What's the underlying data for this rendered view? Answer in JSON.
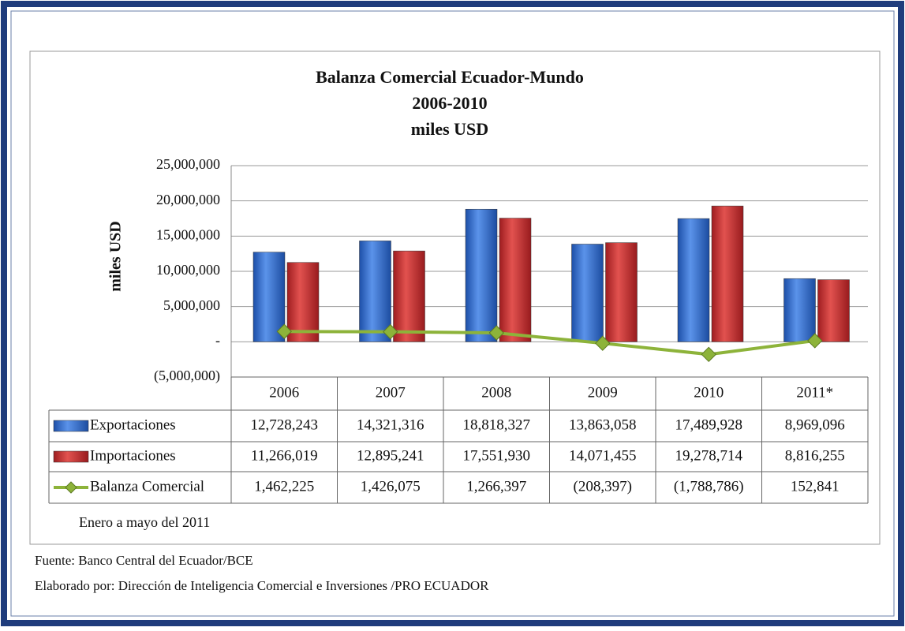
{
  "chart_data": {
    "type": "bar",
    "title": [
      "Balanza Comercial Ecuador-Mundo",
      "2006-2010",
      "miles USD"
    ],
    "ylabel": "miles USD",
    "categories": [
      "2006",
      "2007",
      "2008",
      "2009",
      "2010",
      "2011*"
    ],
    "series": [
      {
        "name": "Exportaciones",
        "color": "#2f6fd8",
        "type": "bar",
        "values": [
          12728243,
          14321316,
          18818327,
          13863058,
          17489928,
          8969096
        ],
        "value_labels": [
          "12,728,243",
          "14,321,316",
          "18,818,327",
          "13,863,058",
          "17,489,928",
          "8,969,096"
        ]
      },
      {
        "name": "Importaciones",
        "color": "#c9282b",
        "type": "bar",
        "values": [
          11266019,
          12895241,
          17551930,
          14071455,
          19278714,
          8816255
        ],
        "value_labels": [
          "11,266,019",
          "12,895,241",
          "17,551,930",
          "14,071,455",
          "19,278,714",
          "8,816,255"
        ]
      },
      {
        "name": "Balanza Comercial",
        "color": "#8db33a",
        "type": "line",
        "values": [
          1462225,
          1426075,
          1266397,
          -208397,
          -1788786,
          152841
        ],
        "value_labels": [
          "1,462,225",
          "1,426,075",
          "1,266,397",
          "(208,397)",
          "(1,788,786)",
          "152,841"
        ]
      }
    ],
    "ylim": [
      -5000000,
      25000000
    ],
    "yticks": [
      {
        "value": 25000000,
        "label": "25,000,000"
      },
      {
        "value": 20000000,
        "label": "20,000,000"
      },
      {
        "value": 15000000,
        "label": "15,000,000"
      },
      {
        "value": 10000000,
        "label": "10,000,000"
      },
      {
        "value": 5000000,
        "label": "5,000,000"
      },
      {
        "value": 0,
        "label": "-"
      },
      {
        "value": -5000000,
        "label": "(5,000,000)"
      }
    ],
    "grid": true,
    "note": "Enero a mayo del 2011"
  },
  "footer": {
    "source": "Fuente: Banco Central del Ecuador/BCE",
    "credit": "Elaborado por: Dirección de Inteligencia Comercial e Inversiones /PRO ECUADOR"
  }
}
